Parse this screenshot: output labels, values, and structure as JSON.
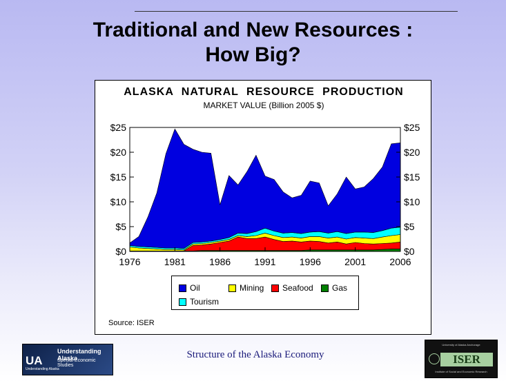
{
  "slide": {
    "title_line1": "Traditional and New Resources :",
    "title_line2": "How Big?",
    "footer": "Structure of the Alaska Economy",
    "source": "Source: ISER"
  },
  "logos": {
    "ua": {
      "mark": "UA",
      "line1": "Understanding Alaska",
      "line2": "Special Economic Studies",
      "line3": "Understanding Alaska"
    },
    "iser": {
      "word": "ISER",
      "top": "University of Alaska Anchorage",
      "bottom": "Institute of Social and Economic Research"
    }
  },
  "chart_data": {
    "type": "area",
    "stacked": true,
    "title": "ALASKA NATURAL RESOURCE PRODUCTION",
    "subtitle": "MARKET VALUE (Billion 2005 $)",
    "xlim": [
      1976,
      2006
    ],
    "ylim": [
      0,
      25
    ],
    "x_ticks": [
      1976,
      1981,
      1986,
      1991,
      1996,
      2001,
      2006
    ],
    "x_tick_labels": [
      "1976",
      "1981",
      "1986",
      "1991",
      "1996",
      "2001",
      "2006"
    ],
    "y_ticks": [
      0,
      5,
      10,
      15,
      20,
      25
    ],
    "y_tick_labels": [
      "$0",
      "$5",
      "$10",
      "$15",
      "$20",
      "$25"
    ],
    "grid": false,
    "legend_position": "bottom-center",
    "x": [
      1976,
      1977,
      1978,
      1979,
      1980,
      1981,
      1982,
      1983,
      1984,
      1985,
      1986,
      1987,
      1988,
      1989,
      1990,
      1991,
      1992,
      1993,
      1994,
      1995,
      1996,
      1997,
      1998,
      1999,
      2000,
      2001,
      2002,
      2003,
      2004,
      2005,
      2006
    ],
    "series": [
      {
        "name": "Gas",
        "color": "#008000",
        "values": [
          0.1,
          0.1,
          0.1,
          0.1,
          0.1,
          0.1,
          0.1,
          0.1,
          0.2,
          0.2,
          0.2,
          0.2,
          0.2,
          0.2,
          0.2,
          0.2,
          0.2,
          0.2,
          0.2,
          0.2,
          0.3,
          0.3,
          0.3,
          0.3,
          0.3,
          0.3,
          0.3,
          0.3,
          0.4,
          0.5,
          0.5
        ]
      },
      {
        "name": "Seafood",
        "color": "#ff0000",
        "values": [
          0,
          0,
          0,
          0,
          0,
          0,
          0,
          1.1,
          1.1,
          1.3,
          1.6,
          1.9,
          2.7,
          2.4,
          2.4,
          2.7,
          2.2,
          1.8,
          1.9,
          1.7,
          1.8,
          1.7,
          1.4,
          1.6,
          1.2,
          1.5,
          1.3,
          1.2,
          1.2,
          1.2,
          1.4
        ]
      },
      {
        "name": "Mining",
        "color": "#ffff00",
        "values": [
          0.8,
          0.6,
          0.5,
          0.4,
          0.3,
          0.3,
          0.2,
          0.3,
          0.3,
          0.3,
          0.3,
          0.3,
          0.3,
          0.4,
          0.6,
          0.8,
          0.8,
          0.8,
          0.8,
          0.8,
          0.9,
          1.0,
          1.0,
          1.0,
          1.0,
          1.0,
          1.1,
          1.1,
          1.3,
          1.5,
          1.5
        ]
      },
      {
        "name": "Tourism",
        "color": "#00ffff",
        "values": [
          0.3,
          0.3,
          0.3,
          0.3,
          0.3,
          0.3,
          0.3,
          0.3,
          0.3,
          0.3,
          0.3,
          0.4,
          0.5,
          0.6,
          0.8,
          1.0,
          0.9,
          0.9,
          0.9,
          0.9,
          0.9,
          1.0,
          1.0,
          1.1,
          1.1,
          1.1,
          1.2,
          1.2,
          1.3,
          1.5,
          1.5
        ]
      },
      {
        "name": "Oil",
        "color": "#0000e0",
        "values": [
          0.5,
          2.0,
          6.0,
          11.0,
          19.0,
          24.0,
          21.0,
          18.8,
          18.1,
          17.7,
          7.0,
          12.5,
          9.7,
          12.5,
          15.4,
          10.5,
          10.4,
          8.3,
          7.0,
          7.7,
          10.3,
          9.8,
          5.5,
          7.6,
          11.4,
          8.7,
          9.1,
          10.9,
          12.8,
          17.0,
          17.0
        ]
      }
    ],
    "legend_order": [
      "Oil",
      "Mining",
      "Seafood",
      "Gas",
      "Tourism"
    ]
  }
}
